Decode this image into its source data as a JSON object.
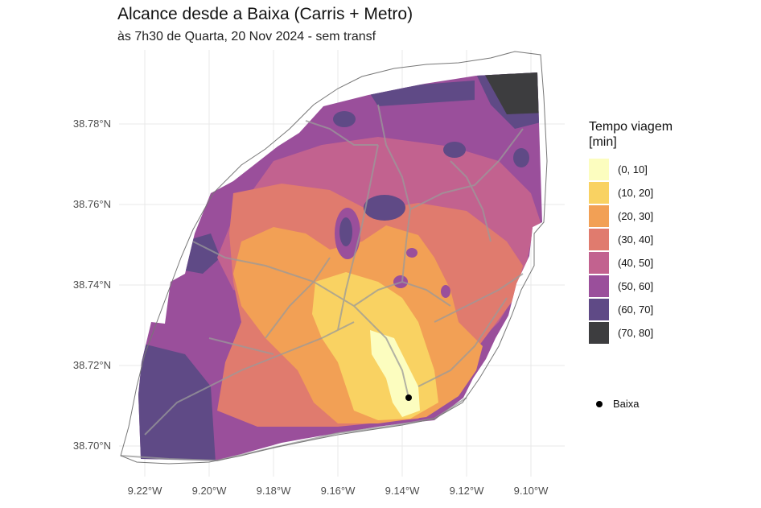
{
  "title": "Alcance desde a Baixa (Carris + Metro)",
  "subtitle": "às 7h30 de Quarta, 20 Nov 2024 - sem transf",
  "axes": {
    "y_ticks": [
      "38.78°N",
      "38.76°N",
      "38.74°N",
      "38.72°N",
      "38.70°N"
    ],
    "x_ticks": [
      "9.22°W",
      "9.20°W",
      "9.18°W",
      "9.16°W",
      "9.14°W",
      "9.12°W",
      "9.10°W"
    ]
  },
  "legend": {
    "title": "Tempo viagem\n[min]",
    "items": [
      {
        "label": "(0, 10]",
        "color": "#fcfdbf"
      },
      {
        "label": "(10, 20]",
        "color": "#f9d262"
      },
      {
        "label": "(20, 30]",
        "color": "#f2a055"
      },
      {
        "label": "(30, 40]",
        "color": "#e07b6e"
      },
      {
        "label": "(40, 50]",
        "color": "#c2628f"
      },
      {
        "label": "(50, 60]",
        "color": "#9a4f9b"
      },
      {
        "label": "(60, 70]",
        "color": "#5f4a86"
      },
      {
        "label": "(70, 80]",
        "color": "#3d3d3f"
      }
    ]
  },
  "point": {
    "label": "Baixa",
    "color": "#000000"
  }
}
